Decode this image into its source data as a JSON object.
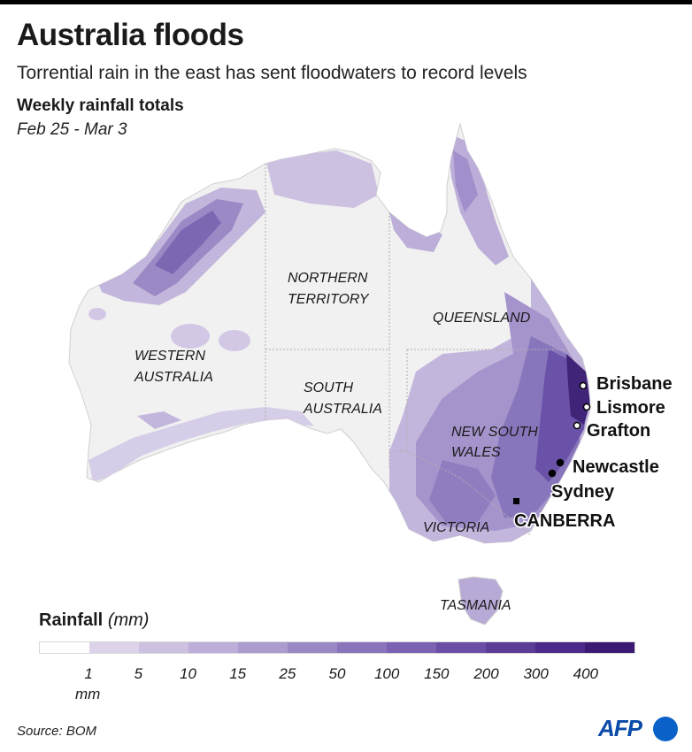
{
  "title": "Australia floods",
  "subtitle": "Torrential rain in the east has sent floodwaters to record levels",
  "section_title": "Weekly rainfall totals",
  "date_range": "Feb 25 - Mar 3",
  "regions": {
    "nt_line1": "NORTHERN",
    "nt_line2": "TERRITORY",
    "qld": "QUEENSLAND",
    "wa_line1": "WESTERN",
    "wa_line2": "AUSTRALIA",
    "sa_line1": "SOUTH",
    "sa_line2": "AUSTRALIA",
    "nsw_line1": "NEW SOUTH",
    "nsw_line2": "WALES",
    "vic": "VICTORIA",
    "tas": "TASMANIA"
  },
  "cities": {
    "brisbane": "Brisbane",
    "lismore": "Lismore",
    "grafton": "Grafton",
    "newcastle": "Newcastle",
    "sydney": "Sydney",
    "canberra": "CANBERRA"
  },
  "legend": {
    "title_bold": "Rainfall",
    "title_italic": "(mm)",
    "unit": "mm",
    "ticks": [
      "1",
      "5",
      "10",
      "15",
      "25",
      "50",
      "100",
      "150",
      "200",
      "300",
      "400"
    ],
    "colors": [
      "#ffffff",
      "#dcd3ea",
      "#cdc1e2",
      "#bcaed9",
      "#ab9bcf",
      "#9a88c5",
      "#8a74bb",
      "#7a61b1",
      "#6a4ea5",
      "#5b3c98",
      "#4c2a89",
      "#3a1a72"
    ]
  },
  "source": "Source: BOM",
  "logo_text": "AFP"
}
